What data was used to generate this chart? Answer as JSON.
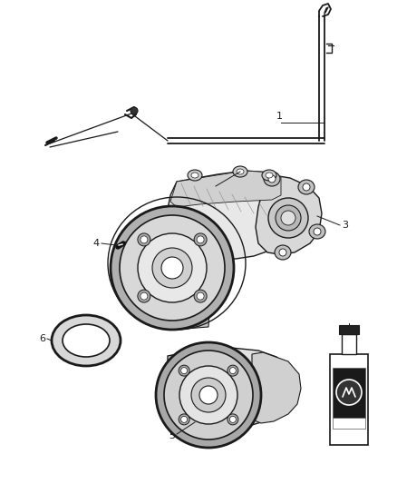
{
  "background_color": "#ffffff",
  "line_color": "#1a1a1a",
  "label_color": "#1a1a1a",
  "figsize": [
    4.38,
    5.33
  ],
  "dpi": 100,
  "parts": {
    "tube_color": "#333333",
    "housing_fill": "#e8e8e8",
    "housing_dark": "#c0c0c0",
    "flange_fill": "#d0d0d0",
    "bottle_label_fill": "#222222"
  }
}
